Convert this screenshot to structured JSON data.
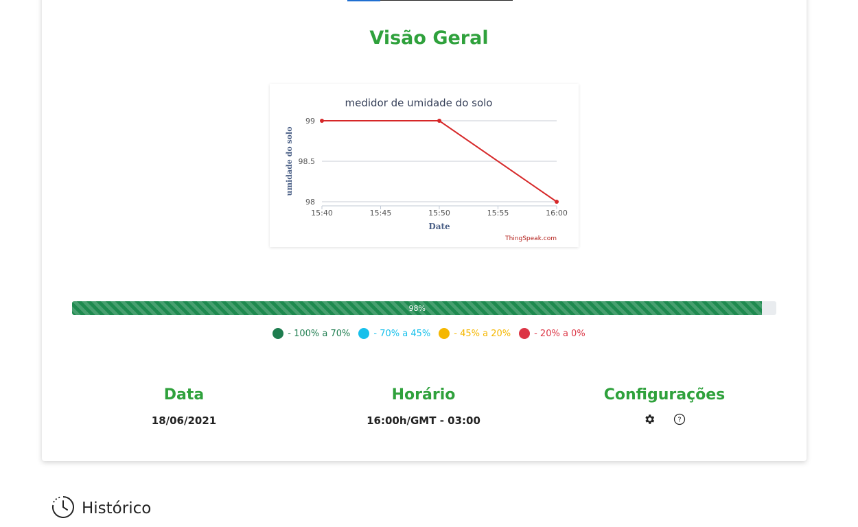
{
  "overview": {
    "title": "Visão Geral"
  },
  "chart_data": {
    "type": "line",
    "title": "medidor de umidade do solo",
    "xlabel": "Date",
    "ylabel": "umidade do solo",
    "x_ticks": [
      "15:40",
      "15:45",
      "15:50",
      "15:55",
      "16:00"
    ],
    "y_ticks": [
      "98",
      "98.5",
      "99"
    ],
    "ylim": [
      98,
      99
    ],
    "x": [
      "15:40",
      "15:50",
      "16:00"
    ],
    "y": [
      99,
      99,
      98
    ],
    "line_color": "#d62728",
    "credit": "ThingSpeak.com",
    "grid": true
  },
  "progress": {
    "value_pct": 98,
    "label": "98%",
    "color": "#1e8a4f"
  },
  "legend": [
    {
      "text": "- 100% a 70%",
      "color": "#1e7d4f"
    },
    {
      "text": "- 70% a 45%",
      "color": "#17c0eb"
    },
    {
      "text": "- 45% a 20%",
      "color": "#f5b700"
    },
    {
      "text": "- 20% a 0%",
      "color": "#dc3545"
    }
  ],
  "info": {
    "date_label": "Data",
    "date_value": "18/06/2021",
    "time_label": "Horário",
    "time_value": "16:00h/GMT - 03:00",
    "settings_label": "Configurações",
    "settings_icons": [
      "gear-icon",
      "help-icon"
    ]
  },
  "history": {
    "label": "Histórico",
    "icon": "clock-icon"
  }
}
